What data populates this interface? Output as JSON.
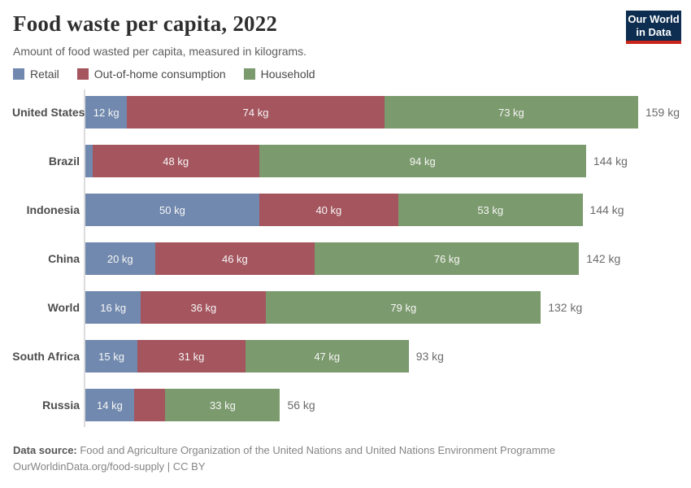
{
  "header": {
    "title": "Food waste per capita, 2022",
    "subtitle": "Amount of food wasted per capita, measured in kilograms.",
    "logo_line1": "Our World",
    "logo_line2": "in Data"
  },
  "legend": {
    "items": [
      {
        "label": "Retail",
        "color": "#7189ae"
      },
      {
        "label": "Out-of-home consumption",
        "color": "#a4555e"
      },
      {
        "label": "Household",
        "color": "#7b9a6d"
      }
    ]
  },
  "chart_data": {
    "type": "bar",
    "orientation": "horizontal-stacked",
    "unit": "kg",
    "xmax": 159,
    "grid": false,
    "categories": [
      "United States",
      "Brazil",
      "Indonesia",
      "China",
      "World",
      "South Africa",
      "Russia"
    ],
    "series": [
      {
        "name": "Retail",
        "color": "#7189ae",
        "values": [
          12,
          2,
          50,
          20,
          16,
          15,
          14
        ]
      },
      {
        "name": "Out-of-home consumption",
        "color": "#a4555e",
        "values": [
          74,
          48,
          40,
          46,
          36,
          31,
          9
        ]
      },
      {
        "name": "Household",
        "color": "#7b9a6d",
        "values": [
          73,
          94,
          53,
          76,
          79,
          47,
          33
        ]
      }
    ],
    "segment_labels": [
      [
        "12 kg",
        "74 kg",
        "73 kg"
      ],
      [
        "",
        "48 kg",
        "94 kg"
      ],
      [
        "50 kg",
        "40 kg",
        "53 kg"
      ],
      [
        "20 kg",
        "46 kg",
        "76 kg"
      ],
      [
        "16 kg",
        "36 kg",
        "79 kg"
      ],
      [
        "15 kg",
        "31 kg",
        "47 kg"
      ],
      [
        "14 kg",
        "",
        "33 kg"
      ]
    ],
    "totals": [
      "159 kg",
      "144 kg",
      "144 kg",
      "142 kg",
      "132 kg",
      "93 kg",
      "56 kg"
    ]
  },
  "footer": {
    "data_source_label": "Data source:",
    "data_source_text": " Food and Agriculture Organization of the United Nations and United Nations Environment Programme",
    "link_line": "OurWorldinData.org/food-supply | CC BY"
  }
}
